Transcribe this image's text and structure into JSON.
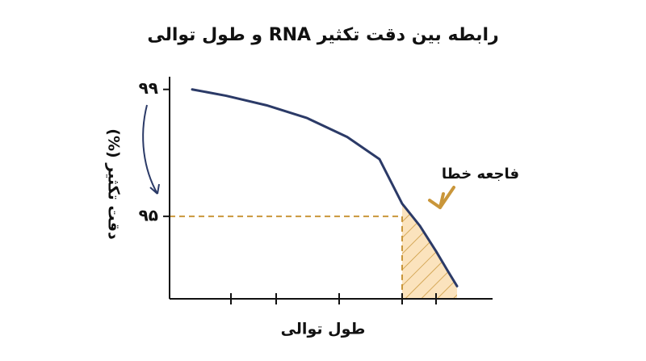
{
  "chart_data": {
    "type": "line",
    "title": "رابطه بین دقت تکثیر RNA و طول توالی",
    "x_label": "طول توالی",
    "y_label": "دقت تکثیر (%)",
    "annotation": "فاجعه خطا",
    "x": [
      0.7,
      1.75,
      3,
      4.25,
      5.5,
      6.5,
      7.2,
      7.75,
      8.25,
      8.6,
      8.9
    ],
    "series": [
      {
        "color": "#2b3a67",
        "values": [
          99.0,
          98.8,
          98.5,
          98.1,
          97.5,
          96.8,
          95.4,
          94.7,
          93.9,
          93.3,
          92.8
        ]
      }
    ],
    "reference_line": {
      "x": 7.2,
      "y": 95,
      "color": "#c9963a"
    },
    "xlim": [
      0,
      10
    ],
    "xticks": [
      1.9,
      3.3,
      5.25,
      7.2,
      8.25
    ],
    "ylim": [
      92.4,
      99.4
    ],
    "yticks": [
      {
        "value": 95,
        "label": "۹۵"
      },
      {
        "value": 99,
        "label": "۹۹"
      }
    ]
  }
}
